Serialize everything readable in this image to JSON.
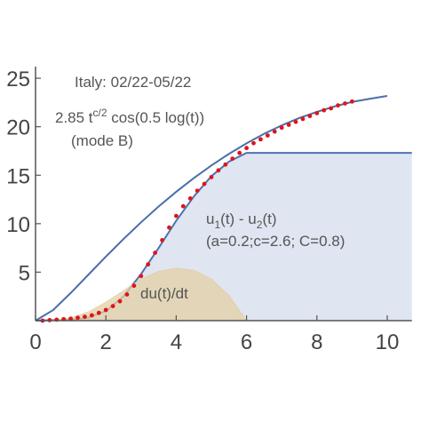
{
  "chart_data": {
    "type": "line",
    "xlim": [
      0,
      10.7
    ],
    "ylim": [
      0,
      26.2
    ],
    "xticks": [
      0,
      2,
      4,
      6,
      8,
      10
    ],
    "yticks": [
      5,
      10,
      15,
      20,
      25
    ],
    "annotations": {
      "title": "Italy: 02/22-05/22",
      "formula_parts": [
        {
          "text": "2.85 t"
        },
        {
          "sup": "c/2"
        },
        {
          "text": " cos(0.5 log(t))"
        }
      ],
      "mode": "(mode B)",
      "u_label_parts": [
        {
          "text": "u"
        },
        {
          "sub": "1"
        },
        {
          "text": "(t) - u"
        },
        {
          "sub": "2"
        },
        {
          "text": "(t)"
        }
      ],
      "params": "(a=0.2;c=2.6; C=0.8)",
      "deriv": "du(t)/dt"
    },
    "series": [
      {
        "type": "area",
        "color": "#4f72b0",
        "fill": "#dfe5f1",
        "x": [
          0,
          1,
          1.5,
          2,
          2.5,
          3,
          3.5,
          4,
          4.5,
          5,
          5.5,
          6,
          10.7
        ],
        "values": [
          0,
          0.1,
          0.3,
          1,
          2.5,
          4.8,
          7.5,
          10.3,
          12.8,
          14.9,
          16.4,
          17.3,
          17.3
        ]
      },
      {
        "type": "area",
        "color": "#e3cfa4",
        "fill": "#e3cfa4",
        "x": [
          0,
          0.5,
          1,
          1.5,
          2,
          2.5,
          3,
          3.5,
          4,
          4.5,
          5,
          5.5,
          6
        ],
        "values": [
          0,
          0.05,
          0.3,
          0.9,
          1.9,
          3.1,
          4.3,
          5.1,
          5.4,
          5.2,
          4.3,
          2.6,
          0
        ]
      },
      {
        "type": "line",
        "color": "#4a6fa8",
        "x": [
          0,
          0.5,
          1,
          1.5,
          2,
          2.5,
          3,
          3.5,
          4,
          4.5,
          5,
          5.5,
          6,
          6.5,
          7,
          7.5,
          8,
          8.5,
          9,
          9.5,
          10
        ],
        "values": [
          0,
          1.09,
          2.85,
          4.73,
          6.6,
          8.41,
          10.14,
          11.77,
          13.29,
          14.7,
          16.0,
          17.2,
          18.29,
          19.27,
          20.14,
          20.9,
          21.53,
          22.09,
          22.56,
          22.88,
          23.18
        ]
      },
      {
        "type": "scatter",
        "color": "#e0141b",
        "x": [
          0.2,
          0.4,
          0.6,
          0.8,
          1.0,
          1.2,
          1.4,
          1.6,
          1.8,
          2.0,
          2.2,
          2.4,
          2.6,
          2.8,
          3.0,
          3.2,
          3.4,
          3.6,
          3.8,
          4.0,
          4.2,
          4.4,
          4.6,
          4.8,
          5.0,
          5.2,
          5.4,
          5.6,
          5.8,
          6.0,
          6.2,
          6.4,
          6.6,
          6.8,
          7.0,
          7.2,
          7.4,
          7.6,
          7.8,
          8.0,
          8.2,
          8.4,
          8.6,
          8.8,
          9.0
        ],
        "values": [
          0,
          0.05,
          0.1,
          0.15,
          0.2,
          0.3,
          0.4,
          0.55,
          0.8,
          1.1,
          1.5,
          2.0,
          2.7,
          3.6,
          4.6,
          5.8,
          7.0,
          8.3,
          9.6,
          10.8,
          11.8,
          12.6,
          13.4,
          14.1,
          14.8,
          15.5,
          16.1,
          16.7,
          17.3,
          17.8,
          18.3,
          18.7,
          19.1,
          19.5,
          19.9,
          20.2,
          20.5,
          20.8,
          21.1,
          21.4,
          21.7,
          21.9,
          22.2,
          22.4,
          22.6
        ]
      }
    ]
  }
}
